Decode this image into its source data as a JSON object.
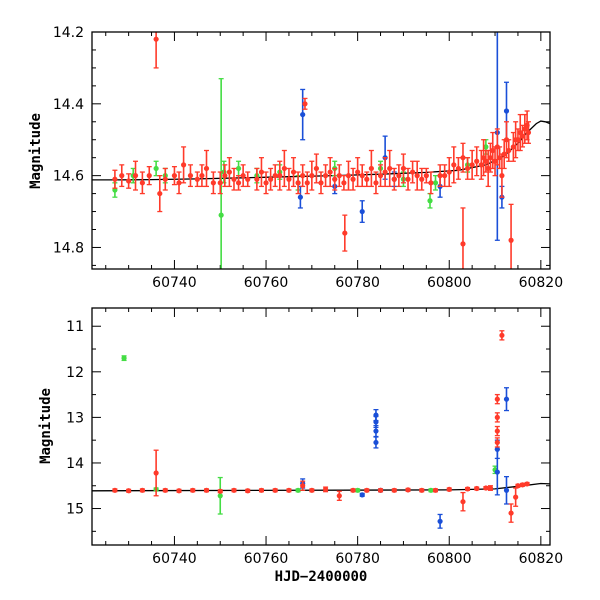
{
  "colors": {
    "red": "#ff3a2a",
    "blue": "#1a4fd8",
    "green": "#44dd44",
    "model": "#000000"
  },
  "chart_data": [
    {
      "type": "scatter",
      "title": "",
      "xlabel": "",
      "ylabel": "Magnitude",
      "xlim": [
        60722,
        60822
      ],
      "ylim": [
        14.86,
        14.2
      ],
      "inverted_y": true,
      "x_ticks": [
        60740,
        60760,
        60780,
        60800,
        60820
      ],
      "y_ticks": [
        14.2,
        14.4,
        14.6,
        14.8
      ],
      "y_tick_labels": [
        "14.2",
        "14.4",
        "14.6",
        "14.8"
      ],
      "model_curve": {
        "x": [
          60722,
          60727,
          60735,
          60745,
          60755,
          60765,
          60775,
          60785,
          60795,
          60802,
          60808,
          60812,
          60815,
          60817,
          60819,
          60820,
          60821,
          60822
        ],
        "y": [
          14.612,
          14.612,
          14.611,
          14.609,
          14.606,
          14.603,
          14.6,
          14.596,
          14.591,
          14.585,
          14.57,
          14.545,
          14.51,
          14.48,
          14.455,
          14.448,
          14.45,
          14.455
        ]
      },
      "series": [
        {
          "color": "red",
          "points": [
            [
              60727,
              14.61,
              0.025
            ],
            [
              60728.5,
              14.6,
              0.03
            ],
            [
              60730,
              14.615,
              0.02
            ],
            [
              60731.5,
              14.6,
              0.04
            ],
            [
              60733,
              14.62,
              0.03
            ],
            [
              60734.5,
              14.6,
              0.025
            ],
            [
              60736,
              14.22,
              0.08
            ],
            [
              60736.8,
              14.65,
              0.05
            ],
            [
              60738,
              14.61,
              0.03
            ],
            [
              60740,
              14.6,
              0.025
            ],
            [
              60741,
              14.62,
              0.03
            ],
            [
              60742,
              14.57,
              0.05
            ],
            [
              60743.5,
              14.6,
              0.03
            ],
            [
              60745,
              14.61,
              0.02
            ],
            [
              60746,
              14.6,
              0.03
            ],
            [
              60747,
              14.58,
              0.05
            ],
            [
              60748.5,
              14.62,
              0.03
            ],
            [
              60750,
              14.62,
              0.03
            ],
            [
              60751,
              14.6,
              0.03
            ],
            [
              60752,
              14.59,
              0.04
            ],
            [
              60753,
              14.61,
              0.03
            ],
            [
              60754,
              14.62,
              0.02
            ],
            [
              60755,
              14.6,
              0.03
            ],
            [
              60756,
              14.61,
              0.02
            ],
            [
              60758,
              14.61,
              0.03
            ],
            [
              60759,
              14.59,
              0.04
            ],
            [
              60760,
              14.62,
              0.03
            ],
            [
              60761,
              14.61,
              0.03
            ],
            [
              60762,
              14.6,
              0.03
            ],
            [
              60763,
              14.6,
              0.04
            ],
            [
              60764,
              14.58,
              0.05
            ],
            [
              60765,
              14.61,
              0.03
            ],
            [
              60766,
              14.59,
              0.04
            ],
            [
              60767,
              14.62,
              0.03
            ],
            [
              60768,
              14.6,
              0.03
            ],
            [
              60768.5,
              14.4,
              0.015
            ],
            [
              60769,
              14.62,
              0.03
            ],
            [
              60770,
              14.6,
              0.04
            ],
            [
              60771,
              14.58,
              0.04
            ],
            [
              60772,
              14.62,
              0.03
            ],
            [
              60773,
              14.6,
              0.03
            ],
            [
              60774,
              14.59,
              0.04
            ],
            [
              60775,
              14.61,
              0.03
            ],
            [
              60776,
              14.6,
              0.03
            ],
            [
              60777,
              14.62,
              0.02
            ],
            [
              60777.2,
              14.76,
              0.05
            ],
            [
              60778,
              14.6,
              0.04
            ],
            [
              60779,
              14.61,
              0.03
            ],
            [
              60780,
              14.59,
              0.04
            ],
            [
              60781,
              14.6,
              0.03
            ],
            [
              60782,
              14.61,
              0.02
            ],
            [
              60783,
              14.58,
              0.05
            ],
            [
              60784,
              14.62,
              0.03
            ],
            [
              60785,
              14.6,
              0.03
            ],
            [
              60786,
              14.59,
              0.04
            ],
            [
              60787,
              14.58,
              0.05
            ],
            [
              60788,
              14.61,
              0.03
            ],
            [
              60789,
              14.6,
              0.03
            ],
            [
              60790,
              14.58,
              0.04
            ],
            [
              60791,
              14.61,
              0.03
            ],
            [
              60792,
              14.59,
              0.03
            ],
            [
              60793,
              14.6,
              0.04
            ],
            [
              60794,
              14.61,
              0.03
            ],
            [
              60795,
              14.6,
              0.02
            ],
            [
              60796,
              14.62,
              0.03
            ],
            [
              60798,
              14.6,
              0.03
            ],
            [
              60799,
              14.6,
              0.03
            ],
            [
              60800,
              14.59,
              0.04
            ],
            [
              60801,
              14.57,
              0.05
            ],
            [
              60802,
              14.58,
              0.03
            ],
            [
              60803,
              14.79,
              0.1
            ],
            [
              60803,
              14.55,
              0.04
            ],
            [
              60804,
              14.58,
              0.03
            ],
            [
              60805,
              14.57,
              0.04
            ],
            [
              60806,
              14.56,
              0.04
            ],
            [
              60807,
              14.57,
              0.04
            ],
            [
              60807.5,
              14.55,
              0.05
            ],
            [
              60808,
              14.56,
              0.03
            ],
            [
              60808.5,
              14.58,
              0.05
            ],
            [
              60809,
              14.55,
              0.04
            ],
            [
              60809.5,
              14.53,
              0.05
            ],
            [
              60810,
              14.56,
              0.04
            ],
            [
              60810.5,
              14.52,
              0.05
            ],
            [
              60811,
              14.55,
              0.03
            ],
            [
              60811.5,
              14.6,
              0.06
            ],
            [
              60812,
              14.54,
              0.04
            ],
            [
              60812.5,
              14.5,
              0.05
            ],
            [
              60813,
              14.53,
              0.03
            ],
            [
              60813.5,
              14.78,
              0.1
            ],
            [
              60814,
              14.52,
              0.04
            ],
            [
              60814.5,
              14.5,
              0.05
            ],
            [
              60815,
              14.5,
              0.03
            ],
            [
              60815.5,
              14.48,
              0.05
            ],
            [
              60816,
              14.49,
              0.03
            ],
            [
              60816.5,
              14.47,
              0.04
            ],
            [
              60817,
              14.46,
              0.04
            ],
            [
              60817.3,
              14.48,
              0.03
            ]
          ]
        },
        {
          "color": "blue",
          "points": [
            [
              60768,
              14.43,
              0.07
            ],
            [
              60767.5,
              14.66,
              0.03
            ],
            [
              60775,
              14.63,
              0.02
            ],
            [
              60781,
              14.7,
              0.03
            ],
            [
              60786,
              14.55,
              0.06
            ],
            [
              60788,
              14.61,
              0.02
            ],
            [
              60798,
              14.63,
              0.03
            ],
            [
              60810.5,
              14.48,
              0.3
            ],
            [
              60811.5,
              14.66,
              0.03
            ],
            [
              60812.5,
              14.42,
              0.08
            ]
          ]
        },
        {
          "color": "green",
          "points": [
            [
              60727,
              14.64,
              0.02
            ],
            [
              60731,
              14.6,
              0.02
            ],
            [
              60736,
              14.58,
              0.02
            ],
            [
              60738,
              14.6,
              0.02
            ],
            [
              60750.2,
              14.71,
              0.38
            ],
            [
              60750.8,
              14.59,
              0.03
            ],
            [
              60754,
              14.58,
              0.02
            ],
            [
              60758,
              14.6,
              0.02
            ],
            [
              60763,
              14.59,
              0.02
            ],
            [
              60767,
              14.62,
              0.02
            ],
            [
              60775,
              14.58,
              0.02
            ],
            [
              60785,
              14.58,
              0.02
            ],
            [
              60790,
              14.61,
              0.02
            ],
            [
              60795.8,
              14.67,
              0.02
            ],
            [
              60797,
              14.62,
              0.02
            ],
            [
              60804,
              14.57,
              0.02
            ],
            [
              60808,
              14.52,
              0.02
            ]
          ]
        }
      ]
    },
    {
      "type": "scatter",
      "title": "",
      "xlabel": "HJD−2400000",
      "ylabel": "Magnitude",
      "xlim": [
        60722,
        60822
      ],
      "ylim": [
        15.8,
        10.6
      ],
      "inverted_y": true,
      "x_ticks": [
        60740,
        60760,
        60780,
        60800,
        60820
      ],
      "y_ticks": [
        11,
        12,
        13,
        14,
        15
      ],
      "y_tick_labels": [
        "11",
        "12",
        "13",
        "14",
        "15"
      ],
      "model_curve": {
        "x": [
          60722,
          60800,
          60810,
          60816,
          60820,
          60822
        ],
        "y": [
          14.61,
          14.59,
          14.57,
          14.5,
          14.45,
          14.46
        ]
      },
      "series": [
        {
          "color": "red",
          "points": [
            [
              60727,
              14.6,
              0.03
            ],
            [
              60730,
              14.61,
              0.03
            ],
            [
              60733,
              14.6,
              0.03
            ],
            [
              60736,
              14.22,
              0.5
            ],
            [
              60738,
              14.6,
              0.03
            ],
            [
              60741,
              14.61,
              0.03
            ],
            [
              60744,
              14.6,
              0.03
            ],
            [
              60747,
              14.6,
              0.03
            ],
            [
              60750,
              14.62,
              0.03
            ],
            [
              60753,
              14.6,
              0.03
            ],
            [
              60756,
              14.61,
              0.03
            ],
            [
              60759,
              14.6,
              0.03
            ],
            [
              60762,
              14.6,
              0.03
            ],
            [
              60765,
              14.6,
              0.03
            ],
            [
              60768,
              14.5,
              0.1
            ],
            [
              60770,
              14.6,
              0.03
            ],
            [
              60773,
              14.58,
              0.05
            ],
            [
              60776,
              14.72,
              0.1
            ],
            [
              60779,
              14.6,
              0.03
            ],
            [
              60782,
              14.6,
              0.03
            ],
            [
              60785,
              14.6,
              0.03
            ],
            [
              60788,
              14.6,
              0.03
            ],
            [
              60791,
              14.59,
              0.03
            ],
            [
              60794,
              14.6,
              0.03
            ],
            [
              60797,
              14.6,
              0.03
            ],
            [
              60800,
              14.58,
              0.03
            ],
            [
              60803,
              14.85,
              0.2
            ],
            [
              60804,
              14.57,
              0.03
            ],
            [
              60806,
              14.56,
              0.03
            ],
            [
              60808,
              14.55,
              0.03
            ],
            [
              60809,
              14.55,
              0.05
            ],
            [
              60810.5,
              12.6,
              0.1
            ],
            [
              60810.5,
              13.0,
              0.1
            ],
            [
              60810.5,
              13.3,
              0.1
            ],
            [
              60810.5,
              13.55,
              0.1
            ],
            [
              60811.5,
              11.2,
              0.1
            ],
            [
              60813.5,
              15.1,
              0.2
            ],
            [
              60814.5,
              14.75,
              0.2
            ],
            [
              60815,
              14.5,
              0.03
            ],
            [
              60816,
              14.48,
              0.03
            ],
            [
              60817,
              14.46,
              0.03
            ]
          ]
        },
        {
          "color": "blue",
          "points": [
            [
              60768,
              14.45,
              0.1
            ],
            [
              60781,
              14.7,
              0.03
            ],
            [
              60784,
              12.95,
              0.12
            ],
            [
              60784,
              13.1,
              0.12
            ],
            [
              60784,
              13.3,
              0.12
            ],
            [
              60784,
              13.55,
              0.12
            ],
            [
              60785,
              14.6,
              0.03
            ],
            [
              60798,
              15.28,
              0.15
            ],
            [
              60810.5,
              14.2,
              0.5
            ],
            [
              60810.5,
              13.7,
              0.2
            ],
            [
              60812.5,
              12.6,
              0.25
            ],
            [
              60812.5,
              14.6,
              0.3
            ]
          ]
        },
        {
          "color": "green",
          "points": [
            [
              60729,
              11.7,
              0.05
            ],
            [
              60736,
              14.58,
              0.03
            ],
            [
              60750,
              14.72,
              0.4
            ],
            [
              60767,
              14.6,
              0.03
            ],
            [
              60780,
              14.6,
              0.03
            ],
            [
              60796,
              14.6,
              0.03
            ],
            [
              60810,
              14.15,
              0.08
            ]
          ]
        }
      ]
    }
  ]
}
